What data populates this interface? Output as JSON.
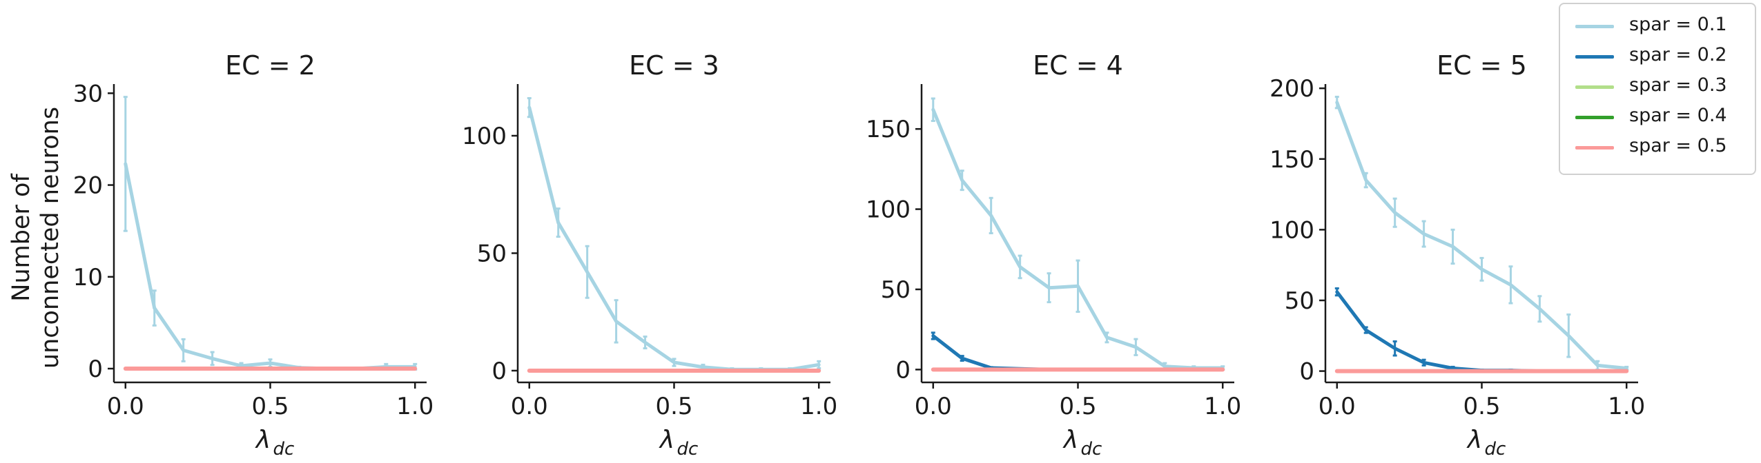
{
  "chart_data": {
    "type": "line",
    "ylabel": [
      "Number of",
      "unconnected neurons"
    ],
    "xlabel": "λ",
    "xlabel_sub": "dc",
    "legend_placement": "top-right",
    "series": [
      {
        "name": "spar = 0.1",
        "color": "#a6d4e3"
      },
      {
        "name": "spar = 0.2",
        "color": "#1f78b4"
      },
      {
        "name": "spar = 0.3",
        "color": "#b2df8a"
      },
      {
        "name": "spar = 0.4",
        "color": "#33a02c"
      },
      {
        "name": "spar = 0.5",
        "color": "#fb9a99"
      }
    ],
    "x": [
      0.0,
      0.1,
      0.2,
      0.3,
      0.4,
      0.5,
      0.6,
      0.7,
      0.8,
      0.9,
      1.0
    ],
    "panels": [
      {
        "title": "EC = 2",
        "ylim": [
          -1.5,
          31
        ],
        "yticks": [
          0,
          10,
          20,
          30
        ],
        "xticks": [
          "0.0",
          "0.5",
          "1.0"
        ],
        "series_values": [
          [
            22.3,
            6.6,
            2.0,
            1.1,
            0.3,
            0.6,
            0.1,
            0.0,
            0.0,
            0.2,
            0.2
          ],
          [
            0.0,
            0.0,
            0.0,
            0.0,
            0.0,
            0.0,
            0.0,
            0.0,
            0.0,
            0.0,
            0.0
          ],
          [
            0.0,
            0.0,
            0.0,
            0.0,
            0.0,
            0.0,
            0.0,
            0.0,
            0.0,
            0.0,
            0.0
          ],
          [
            0.0,
            0.0,
            0.0,
            0.0,
            0.0,
            0.0,
            0.0,
            0.0,
            0.0,
            0.0,
            0.0
          ],
          [
            0.0,
            0.0,
            0.0,
            0.0,
            0.0,
            0.0,
            0.0,
            0.0,
            0.0,
            0.0,
            0.0
          ]
        ],
        "series_errors": [
          [
            7.3,
            1.9,
            1.2,
            0.7,
            0.3,
            0.4,
            0.1,
            0.0,
            0.0,
            0.3,
            0.3
          ],
          [
            0,
            0,
            0,
            0,
            0,
            0,
            0,
            0,
            0,
            0,
            0
          ],
          [
            0,
            0,
            0,
            0,
            0,
            0,
            0,
            0,
            0,
            0,
            0
          ],
          [
            0,
            0,
            0,
            0,
            0,
            0,
            0,
            0,
            0,
            0,
            0
          ],
          [
            0,
            0,
            0,
            0,
            0,
            0,
            0,
            0,
            0,
            0,
            0
          ]
        ]
      },
      {
        "title": "EC = 3",
        "ylim": [
          -5,
          122
        ],
        "yticks": [
          0,
          50,
          100
        ],
        "xticks": [
          "0.0",
          "0.5",
          "1.0"
        ],
        "series_values": [
          [
            112,
            63,
            42,
            21,
            12,
            3.5,
            1.5,
            0.5,
            0.5,
            0.5,
            2.5
          ],
          [
            0.0,
            0.0,
            0.0,
            0.0,
            0.0,
            0.0,
            0.0,
            0.0,
            0.0,
            0.0,
            0.0
          ],
          [
            0.0,
            0.0,
            0.0,
            0.0,
            0.0,
            0.0,
            0.0,
            0.0,
            0.0,
            0.0,
            0.0
          ],
          [
            0.0,
            0.0,
            0.0,
            0.0,
            0.0,
            0.0,
            0.0,
            0.0,
            0.0,
            0.0,
            0.0
          ],
          [
            0.0,
            0.0,
            0.0,
            0.0,
            0.0,
            0.0,
            0.0,
            0.0,
            0.0,
            0.0,
            0.0
          ]
        ],
        "series_errors": [
          [
            4,
            6,
            11,
            9,
            2.5,
            1.5,
            1,
            0.5,
            0.5,
            0.5,
            1.5
          ],
          [
            0,
            0,
            0,
            0,
            0,
            0,
            0,
            0,
            0,
            0,
            0
          ],
          [
            0,
            0,
            0,
            0,
            0,
            0,
            0,
            0,
            0,
            0,
            0
          ],
          [
            0,
            0,
            0,
            0,
            0,
            0,
            0,
            0,
            0,
            0,
            0
          ],
          [
            0,
            0,
            0,
            0,
            0,
            0,
            0,
            0,
            0,
            0,
            0
          ]
        ]
      },
      {
        "title": "EC = 4",
        "ylim": [
          -8,
          178
        ],
        "yticks": [
          0,
          50,
          100,
          150
        ],
        "xticks": [
          "0.0",
          "0.5",
          "1.0"
        ],
        "series_values": [
          [
            162,
            118,
            96,
            64,
            51,
            52,
            20,
            14,
            2,
            1,
            1
          ],
          [
            21,
            7,
            1,
            0.5,
            0,
            0,
            0,
            0,
            0,
            0,
            0
          ],
          [
            0.0,
            0.0,
            0.0,
            0.0,
            0.0,
            0.0,
            0.0,
            0.0,
            0.0,
            0.0,
            0.0
          ],
          [
            0.0,
            0.0,
            0.0,
            0.0,
            0.0,
            0.0,
            0.0,
            0.0,
            0.0,
            0.0,
            0.0
          ],
          [
            0.0,
            0.0,
            0.0,
            0.0,
            0.0,
            0.0,
            0.0,
            0.0,
            0.0,
            0.0,
            0.0
          ]
        ],
        "series_errors": [
          [
            7,
            6,
            11,
            7,
            9,
            16,
            3,
            5,
            2,
            1,
            1
          ],
          [
            2,
            1.5,
            0.5,
            0,
            0,
            0,
            0,
            0,
            0,
            0,
            0
          ],
          [
            0,
            0,
            0,
            0,
            0,
            0,
            0,
            0,
            0,
            0,
            0
          ],
          [
            0,
            0,
            0,
            0,
            0,
            0,
            0,
            0,
            0,
            0,
            0
          ],
          [
            0,
            0,
            0,
            0,
            0,
            0,
            0,
            0,
            0,
            0,
            0
          ]
        ]
      },
      {
        "title": "EC = 5",
        "ylim": [
          -8,
          203
        ],
        "yticks": [
          0,
          50,
          100,
          150,
          200
        ],
        "xticks": [
          "0.0",
          "0.5",
          "1.0"
        ],
        "series_values": [
          [
            190,
            135,
            112,
            97,
            88,
            72,
            61,
            44,
            25,
            4,
            2
          ],
          [
            56,
            29,
            16,
            6,
            2,
            0.5,
            0.5,
            0,
            0,
            0,
            0
          ],
          [
            0.0,
            0.0,
            0.0,
            0.0,
            0.0,
            0.0,
            0.0,
            0.0,
            0.0,
            0.0,
            0.0
          ],
          [
            0.0,
            0.0,
            0.0,
            0.0,
            0.0,
            0.0,
            0.0,
            0.0,
            0.0,
            0.0,
            0.0
          ],
          [
            0.0,
            0.0,
            0.0,
            0.0,
            0.0,
            0.0,
            0.0,
            0.0,
            0.0,
            0.0,
            0.0
          ]
        ],
        "series_errors": [
          [
            4,
            5,
            10,
            9,
            12,
            8,
            13,
            9,
            15,
            3,
            1
          ],
          [
            2.5,
            2,
            5,
            2,
            1,
            0.5,
            0.5,
            0,
            0,
            0,
            0
          ],
          [
            0,
            0,
            0,
            0,
            0,
            0,
            0,
            0,
            0,
            0,
            0
          ],
          [
            0,
            0,
            0,
            0,
            0,
            0,
            0,
            0,
            0,
            0,
            0
          ],
          [
            0,
            0,
            0,
            0,
            0,
            0,
            0,
            0,
            0,
            0,
            0
          ]
        ]
      }
    ]
  }
}
